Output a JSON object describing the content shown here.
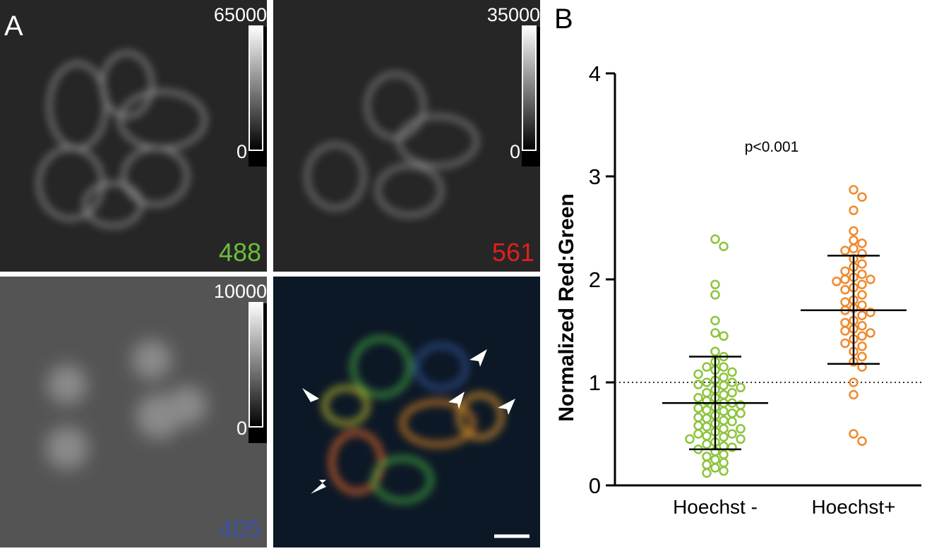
{
  "panel_a": {
    "label": "A",
    "images": [
      {
        "channel": "488",
        "color": "#6cbf3a",
        "colorbar": {
          "max": 65000,
          "min": 0
        }
      },
      {
        "channel": "561",
        "color": "#e0201c",
        "colorbar": {
          "max": 35000,
          "min": 0
        }
      },
      {
        "channel": "405",
        "color": "#3b52a4",
        "colorbar": {
          "max": 10000,
          "min": 0
        }
      }
    ]
  },
  "chart_data": {
    "type": "scatter",
    "panel_label": "B",
    "ylabel": "Normalized Red:Green",
    "annotation": "p<0.001",
    "categories": [
      "Hoechst -",
      "Hoechst+"
    ],
    "ylim": [
      0,
      4
    ],
    "yticks": [
      0,
      1,
      2,
      3,
      4
    ],
    "reference_line": 1,
    "series": [
      {
        "color": "#8cc43c",
        "mean": 0.8,
        "sd_low": 0.35,
        "sd_high": 1.25,
        "values": [
          2.39,
          2.32,
          1.95,
          1.85,
          1.6,
          1.48,
          1.45,
          1.3,
          1.25,
          1.2,
          1.15,
          1.15,
          1.12,
          1.1,
          1.08,
          1.05,
          1.02,
          1.0,
          1.0,
          0.98,
          0.97,
          0.95,
          0.93,
          0.9,
          0.9,
          0.88,
          0.85,
          0.85,
          0.82,
          0.8,
          0.8,
          0.78,
          0.76,
          0.75,
          0.73,
          0.72,
          0.7,
          0.7,
          0.68,
          0.66,
          0.65,
          0.63,
          0.62,
          0.6,
          0.58,
          0.57,
          0.55,
          0.55,
          0.52,
          0.5,
          0.5,
          0.48,
          0.47,
          0.45,
          0.45,
          0.42,
          0.4,
          0.38,
          0.37,
          0.35,
          0.33,
          0.3,
          0.28,
          0.25,
          0.22,
          0.2,
          0.17,
          0.14,
          0.12
        ]
      },
      {
        "color": "#ef8a2c",
        "mean": 1.7,
        "sd_low": 1.18,
        "sd_high": 2.23,
        "values": [
          2.87,
          2.8,
          2.67,
          2.47,
          2.38,
          2.35,
          2.3,
          2.28,
          2.25,
          2.2,
          2.15,
          2.12,
          2.08,
          2.05,
          2.02,
          2.0,
          2.0,
          1.98,
          1.95,
          1.92,
          1.9,
          1.85,
          1.8,
          1.78,
          1.75,
          1.72,
          1.7,
          1.68,
          1.65,
          1.6,
          1.58,
          1.55,
          1.52,
          1.5,
          1.48,
          1.45,
          1.42,
          1.38,
          1.35,
          1.3,
          1.25,
          1.2,
          1.15,
          1.0,
          0.88,
          0.5,
          0.43
        ]
      }
    ]
  }
}
